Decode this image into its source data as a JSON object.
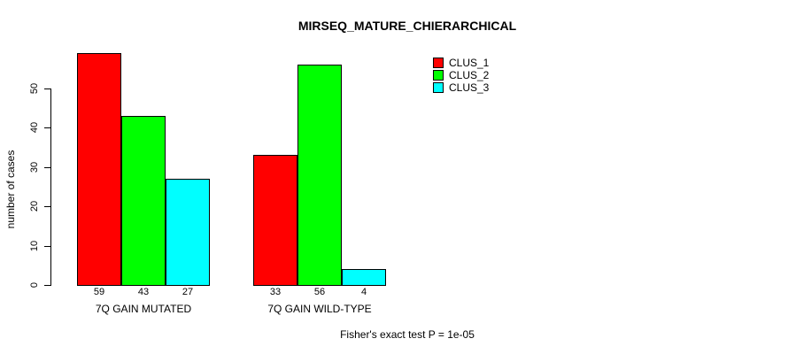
{
  "title": "MIRSEQ_MATURE_CHIERARCHICAL",
  "footer": "Fisher's exact test P = 1e-05",
  "chart_data": {
    "type": "bar",
    "title": "MIRSEQ_MATURE_CHIERARCHICAL",
    "xlabel": "",
    "ylabel": "number of cases",
    "categories": [
      "7Q GAIN MUTATED",
      "7Q GAIN WILD-TYPE"
    ],
    "series": [
      {
        "name": "CLUS_1",
        "color": "#ff0000",
        "values": [
          59,
          33
        ]
      },
      {
        "name": "CLUS_2",
        "color": "#00ff00",
        "values": [
          43,
          56
        ]
      },
      {
        "name": "CLUS_3",
        "color": "#00ffff",
        "values": [
          27,
          4
        ]
      }
    ],
    "bar_value_labels": [
      [
        59,
        43,
        27
      ],
      [
        33,
        56,
        4
      ]
    ],
    "yticks": [
      0,
      10,
      20,
      30,
      40,
      50
    ],
    "ylim": [
      0,
      50
    ],
    "grid": false,
    "legend_position": "top-right",
    "legend_entries": [
      "CLUS_1",
      "CLUS_2",
      "CLUS_3"
    ],
    "annotation": "Fisher's exact test P = 1e-05"
  },
  "colors": {
    "clus_1": "#ff0000",
    "clus_2": "#00ff00",
    "clus_3": "#00ffff",
    "axis": "#000000",
    "background": "#ffffff"
  }
}
